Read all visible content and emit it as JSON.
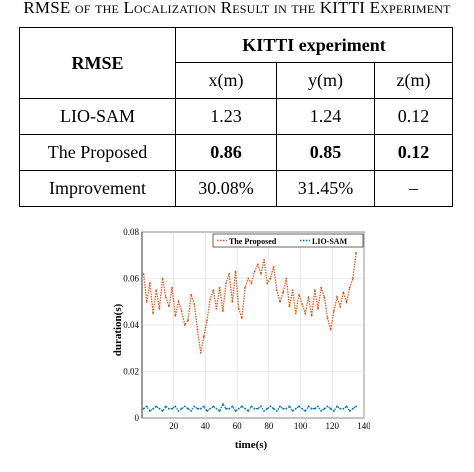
{
  "caption": {
    "pre": "RMSE",
    "rest": " of the Localization Result in the KITTI Experiment"
  },
  "table": {
    "corner": "RMSE",
    "group_header": "KITTI experiment",
    "columns": [
      "x(m)",
      "y(m)",
      "z(m)"
    ],
    "rows": [
      {
        "label": "LIO-SAM",
        "values": [
          "1.23",
          "1.24",
          "0.12"
        ],
        "bold": false
      },
      {
        "label": "The Proposed",
        "values": [
          "0.86",
          "0.85",
          "0.12"
        ],
        "bold": true
      },
      {
        "label": "Improvement",
        "values": [
          "30.08%",
          "31.45%",
          "–"
        ],
        "bold": false
      }
    ]
  },
  "chart_data": {
    "type": "line",
    "xlabel": "time(s)",
    "ylabel": "duration(s)",
    "xlim": [
      0,
      140
    ],
    "ylim": [
      0,
      0.08
    ],
    "xticks": [
      "20",
      "40",
      "60",
      "80",
      "100",
      "120",
      "140"
    ],
    "yticks": [
      "0",
      "0.02",
      "0.04",
      "0.06",
      "0.08"
    ],
    "grid": true,
    "legend_placement": "top",
    "series": [
      {
        "name": "The Proposed",
        "color": "#d95319",
        "style": "dotted",
        "x": [
          1,
          3,
          5,
          7,
          9,
          11,
          13,
          15,
          17,
          19,
          21,
          23,
          25,
          27,
          29,
          31,
          33,
          35,
          37,
          39,
          41,
          43,
          45,
          47,
          49,
          51,
          53,
          55,
          57,
          59,
          61,
          63,
          65,
          67,
          69,
          71,
          73,
          75,
          77,
          79,
          81,
          83,
          85,
          87,
          89,
          91,
          93,
          95,
          97,
          99,
          101,
          103,
          105,
          107,
          109,
          111,
          113,
          115,
          117,
          119,
          121,
          123,
          125,
          127,
          129,
          131,
          133,
          135
        ],
        "values": [
          0.062,
          0.05,
          0.058,
          0.045,
          0.055,
          0.047,
          0.06,
          0.052,
          0.048,
          0.056,
          0.044,
          0.05,
          0.046,
          0.04,
          0.042,
          0.053,
          0.049,
          0.038,
          0.028,
          0.035,
          0.042,
          0.051,
          0.055,
          0.047,
          0.056,
          0.046,
          0.058,
          0.062,
          0.05,
          0.063,
          0.047,
          0.043,
          0.056,
          0.06,
          0.058,
          0.063,
          0.066,
          0.062,
          0.068,
          0.058,
          0.06,
          0.065,
          0.055,
          0.05,
          0.054,
          0.06,
          0.048,
          0.055,
          0.045,
          0.053,
          0.049,
          0.045,
          0.052,
          0.044,
          0.055,
          0.047,
          0.056,
          0.052,
          0.043,
          0.038,
          0.046,
          0.052,
          0.048,
          0.054,
          0.05,
          0.056,
          0.06,
          0.071
        ]
      },
      {
        "name": "LIO-SAM",
        "color": "#0072bd",
        "style": "dotted",
        "x": [
          1,
          3,
          5,
          7,
          9,
          11,
          13,
          15,
          17,
          19,
          21,
          23,
          25,
          27,
          29,
          31,
          33,
          35,
          37,
          39,
          41,
          43,
          45,
          47,
          49,
          51,
          53,
          55,
          57,
          59,
          61,
          63,
          65,
          67,
          69,
          71,
          73,
          75,
          77,
          79,
          81,
          83,
          85,
          87,
          89,
          91,
          93,
          95,
          97,
          99,
          101,
          103,
          105,
          107,
          109,
          111,
          113,
          115,
          117,
          119,
          121,
          123,
          125,
          127,
          129,
          131,
          133,
          135
        ],
        "values": [
          0.004,
          0.005,
          0.003,
          0.004,
          0.005,
          0.004,
          0.003,
          0.005,
          0.004,
          0.004,
          0.005,
          0.003,
          0.004,
          0.005,
          0.004,
          0.003,
          0.005,
          0.004,
          0.004,
          0.005,
          0.003,
          0.004,
          0.005,
          0.004,
          0.003,
          0.006,
          0.004,
          0.004,
          0.005,
          0.003,
          0.004,
          0.005,
          0.004,
          0.003,
          0.005,
          0.004,
          0.004,
          0.005,
          0.003,
          0.004,
          0.005,
          0.004,
          0.003,
          0.005,
          0.004,
          0.004,
          0.005,
          0.003,
          0.004,
          0.005,
          0.004,
          0.003,
          0.005,
          0.004,
          0.004,
          0.005,
          0.003,
          0.004,
          0.005,
          0.004,
          0.003,
          0.005,
          0.004,
          0.004,
          0.005,
          0.003,
          0.004,
          0.005
        ]
      }
    ]
  }
}
